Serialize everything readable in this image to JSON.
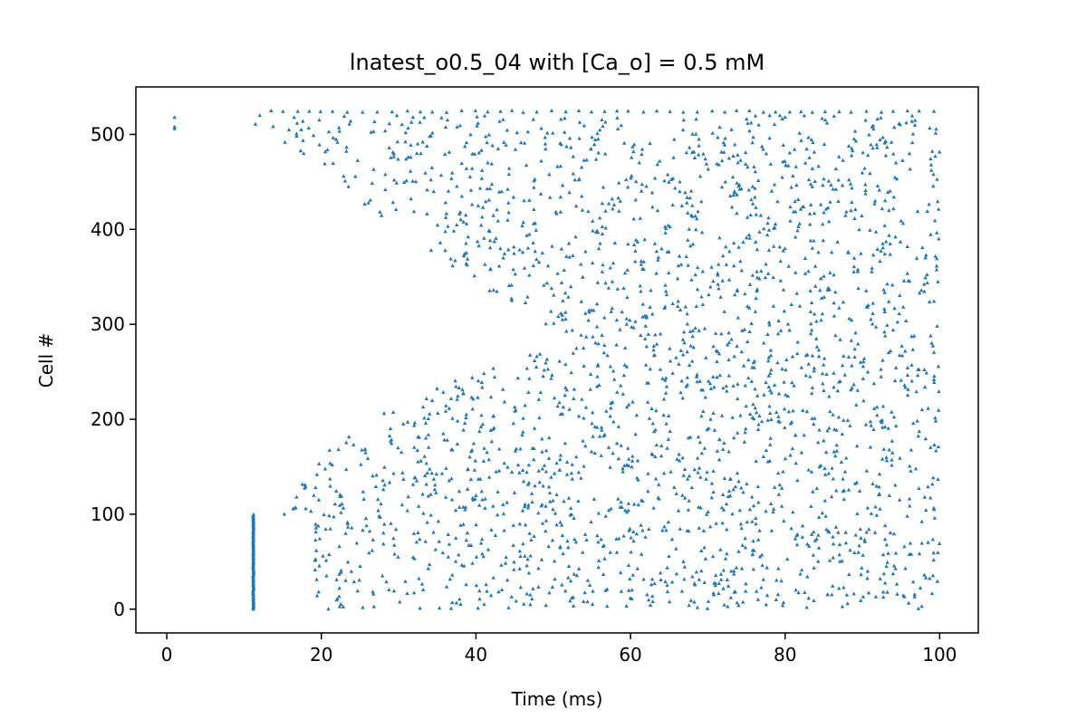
{
  "chart_data": {
    "type": "scatter",
    "title": "lnatest_o0.5_04 with [Ca_o] = 0.5 mM",
    "xlabel": "Time (ms)",
    "ylabel": "Cell #",
    "xlim": [
      -4,
      105
    ],
    "ylim": [
      -25,
      550
    ],
    "xticks": [
      0,
      20,
      40,
      60,
      80,
      100
    ],
    "yticks": [
      0,
      100,
      200,
      300,
      400,
      500
    ],
    "marker": "triangle-up",
    "grid": false,
    "legend": "none",
    "series_color": "#1f77b4",
    "initial_spikes": [
      [
        1,
        518
      ],
      [
        1,
        508
      ],
      [
        1,
        506
      ]
    ],
    "stimulus": {
      "t": 11.2,
      "cell_min": 0,
      "cell_max": 100
    },
    "wavefront": {
      "upper": [
        [
          11,
          500
        ],
        [
          14,
          498
        ],
        [
          17,
          470
        ],
        [
          20,
          450
        ],
        [
          25,
          425
        ],
        [
          30,
          405
        ],
        [
          35,
          372
        ],
        [
          40,
          345
        ],
        [
          45,
          318
        ],
        [
          49,
          300
        ],
        [
          53,
          287
        ]
      ],
      "lower": [
        [
          15,
          100
        ],
        [
          17,
          138
        ],
        [
          20,
          160
        ],
        [
          25,
          195
        ],
        [
          30,
          220
        ],
        [
          35,
          235
        ],
        [
          40,
          250
        ],
        [
          45,
          262
        ],
        [
          49,
          275
        ],
        [
          53,
          287
        ]
      ],
      "early_band": {
        "t_start": 19,
        "cell_max": 100
      },
      "top_row_cell": 524,
      "t_end": 100
    }
  }
}
